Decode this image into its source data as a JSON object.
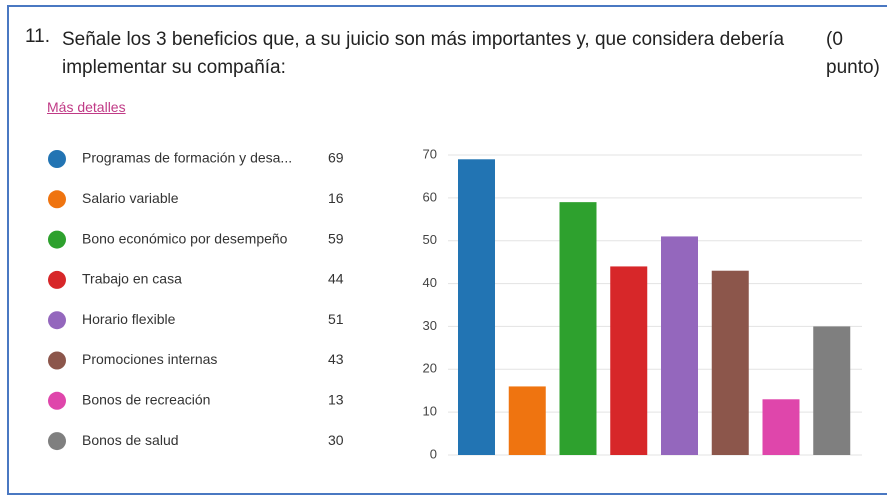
{
  "question": {
    "number": "11.",
    "text": "Señale los 3 beneficios que, a su juicio son más importantes y, que considera debería implementar su compañía:",
    "points": "(0 punto)"
  },
  "details_link": "Más detalles",
  "chart_data": {
    "type": "bar",
    "categories": [
      "Programas de formación y desa...",
      "Salario variable",
      "Bono económico por desempeño",
      "Trabajo en casa",
      "Horario flexible",
      "Promociones internas",
      "Bonos de recreación",
      "Bonos de salud"
    ],
    "values": [
      69,
      16,
      59,
      44,
      51,
      43,
      13,
      30
    ],
    "colors": [
      "#2274b3",
      "#ef7410",
      "#2ea12e",
      "#d72729",
      "#9467bd",
      "#8c564b",
      "#df46ab",
      "#7f7f7f"
    ],
    "ylim": [
      0,
      70
    ],
    "yticks": [
      0,
      10,
      20,
      30,
      40,
      50,
      60,
      70
    ],
    "grid": true
  }
}
